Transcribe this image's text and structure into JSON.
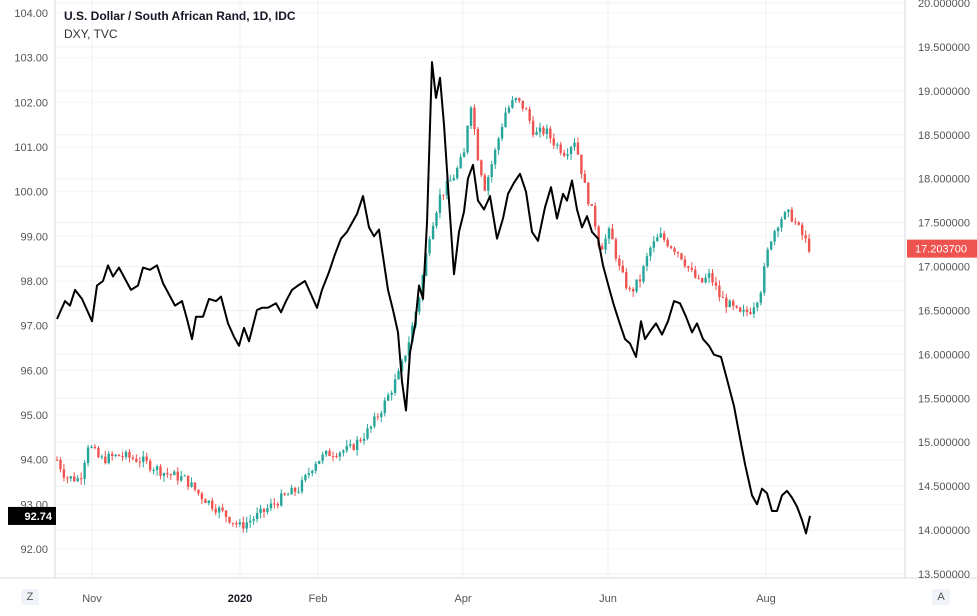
{
  "header": {
    "title": "U.S. Dollar / South African Rand, 1D, IDC",
    "subtitle": "DXY, TVC"
  },
  "corner_buttons": {
    "left": "Z",
    "right": "A"
  },
  "colors": {
    "up": "#26a69a",
    "down": "#ef5350",
    "line": "#000000",
    "grid": "#eef0f3",
    "axis_text": "#555555"
  },
  "chart_data": {
    "type": "candlestick-with-line",
    "title": "U.S. Dollar / South African Rand, 1D, IDC",
    "x_ticks": [
      "Nov",
      "2020",
      "Feb",
      "Apr",
      "Jun",
      "Aug"
    ],
    "left_axis": {
      "ticks": [
        "104.00",
        "103.00",
        "102.00",
        "101.00",
        "100.00",
        "99.00",
        "98.00",
        "97.00",
        "96.00",
        "95.00",
        "94.00",
        "93.00",
        "92.00"
      ],
      "range": [
        91.4,
        104.2
      ],
      "current_label": "92.74"
    },
    "right_axis": {
      "ticks": [
        "20.000000",
        "19.500000",
        "19.000000",
        "18.500000",
        "18.000000",
        "17.500000",
        "17.000000",
        "16.500000",
        "16.000000",
        "15.500000",
        "15.000000",
        "14.500000",
        "14.000000",
        "13.500000"
      ],
      "range": [
        13.4,
        20.05
      ],
      "current_label": "17.203700"
    },
    "series": [
      {
        "name": "DXY, TVC",
        "type": "line",
        "axis": "left",
        "values": [
          [
            57,
            97.15
          ],
          [
            65,
            97.55
          ],
          [
            70,
            97.45
          ],
          [
            75,
            97.8
          ],
          [
            82,
            97.6
          ],
          [
            87,
            97.35
          ],
          [
            92,
            97.1
          ],
          [
            97,
            97.9
          ],
          [
            103,
            98.0
          ],
          [
            108,
            98.35
          ],
          [
            113,
            98.1
          ],
          [
            119,
            98.3
          ],
          [
            125,
            98.05
          ],
          [
            131,
            97.8
          ],
          [
            138,
            97.9
          ],
          [
            143,
            98.3
          ],
          [
            150,
            98.25
          ],
          [
            157,
            98.35
          ],
          [
            163,
            97.95
          ],
          [
            169,
            97.7
          ],
          [
            175,
            97.45
          ],
          [
            182,
            97.55
          ],
          [
            187,
            97.15
          ],
          [
            192,
            96.7
          ],
          [
            196,
            97.2
          ],
          [
            203,
            97.2
          ],
          [
            209,
            97.6
          ],
          [
            216,
            97.55
          ],
          [
            221,
            97.65
          ],
          [
            228,
            97.05
          ],
          [
            234,
            96.75
          ],
          [
            239,
            96.55
          ],
          [
            244,
            96.95
          ],
          [
            249,
            96.65
          ],
          [
            257,
            97.35
          ],
          [
            262,
            97.4
          ],
          [
            268,
            97.4
          ],
          [
            276,
            97.5
          ],
          [
            281,
            97.3
          ],
          [
            286,
            97.55
          ],
          [
            292,
            97.8
          ],
          [
            298,
            97.9
          ],
          [
            305,
            98.0
          ],
          [
            311,
            97.7
          ],
          [
            317,
            97.4
          ],
          [
            322,
            97.8
          ],
          [
            329,
            98.2
          ],
          [
            335,
            98.6
          ],
          [
            341,
            98.95
          ],
          [
            347,
            99.1
          ],
          [
            352,
            99.3
          ],
          [
            357,
            99.5
          ],
          [
            363,
            99.9
          ],
          [
            369,
            99.2
          ],
          [
            374,
            99.0
          ],
          [
            379,
            99.15
          ],
          [
            384,
            98.4
          ],
          [
            388,
            97.8
          ],
          [
            393,
            97.35
          ],
          [
            398,
            96.85
          ],
          [
            402,
            95.75
          ],
          [
            406,
            95.1
          ],
          [
            410,
            96.4
          ],
          [
            415,
            97.0
          ],
          [
            419,
            97.9
          ],
          [
            423,
            97.6
          ],
          [
            427,
            99.3
          ],
          [
            432,
            102.9
          ],
          [
            436,
            102.1
          ],
          [
            440,
            102.55
          ],
          [
            444,
            101.5
          ],
          [
            449,
            99.8
          ],
          [
            454,
            98.15
          ],
          [
            459,
            99.1
          ],
          [
            464,
            99.55
          ],
          [
            468,
            100.3
          ],
          [
            473,
            100.6
          ],
          [
            478,
            99.8
          ],
          [
            484,
            99.6
          ],
          [
            490,
            99.9
          ],
          [
            497,
            98.95
          ],
          [
            503,
            99.4
          ],
          [
            508,
            99.95
          ],
          [
            514,
            100.2
          ],
          [
            520,
            100.4
          ],
          [
            526,
            100.0
          ],
          [
            532,
            99.1
          ],
          [
            538,
            98.9
          ],
          [
            545,
            99.65
          ],
          [
            551,
            100.1
          ],
          [
            557,
            99.4
          ],
          [
            563,
            99.95
          ],
          [
            567,
            99.8
          ],
          [
            572,
            100.25
          ],
          [
            577,
            99.6
          ],
          [
            582,
            99.2
          ],
          [
            587,
            99.45
          ],
          [
            592,
            99.1
          ],
          [
            598,
            98.95
          ],
          [
            603,
            98.35
          ],
          [
            609,
            97.85
          ],
          [
            614,
            97.45
          ],
          [
            619,
            97.1
          ],
          [
            625,
            96.7
          ],
          [
            630,
            96.6
          ],
          [
            636,
            96.3
          ],
          [
            641,
            97.1
          ],
          [
            645,
            96.7
          ],
          [
            651,
            96.9
          ],
          [
            656,
            97.05
          ],
          [
            662,
            96.8
          ],
          [
            668,
            97.1
          ],
          [
            674,
            97.55
          ],
          [
            680,
            97.5
          ],
          [
            686,
            97.2
          ],
          [
            692,
            96.85
          ],
          [
            697,
            97.05
          ],
          [
            703,
            96.7
          ],
          [
            709,
            96.55
          ],
          [
            714,
            96.35
          ],
          [
            721,
            96.3
          ],
          [
            727,
            95.8
          ],
          [
            734,
            95.2
          ],
          [
            739,
            94.6
          ],
          [
            745,
            93.9
          ],
          [
            752,
            93.2
          ],
          [
            757,
            93.0
          ],
          [
            762,
            93.35
          ],
          [
            767,
            93.25
          ],
          [
            772,
            92.85
          ],
          [
            777,
            92.85
          ],
          [
            782,
            93.2
          ],
          [
            787,
            93.3
          ],
          [
            792,
            93.15
          ],
          [
            797,
            92.95
          ],
          [
            802,
            92.65
          ],
          [
            806,
            92.35
          ],
          [
            810,
            92.74
          ]
        ]
      },
      {
        "name": "U.S. Dollar / South African Rand",
        "type": "candlestick",
        "axis": "right",
        "anchors": [
          [
            57,
            14.8
          ],
          [
            66,
            14.6
          ],
          [
            80,
            14.58
          ],
          [
            88,
            14.98
          ],
          [
            100,
            14.8
          ],
          [
            120,
            14.85
          ],
          [
            140,
            14.8
          ],
          [
            165,
            14.65
          ],
          [
            185,
            14.58
          ],
          [
            200,
            14.4
          ],
          [
            220,
            14.22
          ],
          [
            240,
            14.04
          ],
          [
            260,
            14.18
          ],
          [
            280,
            14.35
          ],
          [
            300,
            14.48
          ],
          [
            315,
            14.78
          ],
          [
            330,
            14.88
          ],
          [
            350,
            14.92
          ],
          [
            370,
            15.15
          ],
          [
            385,
            15.45
          ],
          [
            400,
            15.8
          ],
          [
            410,
            16.2
          ],
          [
            420,
            16.7
          ],
          [
            430,
            17.4
          ],
          [
            440,
            17.8
          ],
          [
            455,
            18.05
          ],
          [
            465,
            18.3
          ],
          [
            470,
            18.95
          ],
          [
            478,
            18.25
          ],
          [
            485,
            17.9
          ],
          [
            495,
            18.3
          ],
          [
            505,
            18.75
          ],
          [
            515,
            18.9
          ],
          [
            525,
            18.8
          ],
          [
            535,
            18.5
          ],
          [
            545,
            18.55
          ],
          [
            555,
            18.4
          ],
          [
            565,
            18.3
          ],
          [
            575,
            18.45
          ],
          [
            585,
            17.9
          ],
          [
            595,
            17.5
          ],
          [
            600,
            17.2
          ],
          [
            610,
            17.4
          ],
          [
            620,
            16.95
          ],
          [
            630,
            16.7
          ],
          [
            640,
            16.85
          ],
          [
            650,
            17.2
          ],
          [
            660,
            17.35
          ],
          [
            670,
            17.25
          ],
          [
            680,
            17.15
          ],
          [
            690,
            16.95
          ],
          [
            700,
            16.8
          ],
          [
            710,
            16.9
          ],
          [
            720,
            16.65
          ],
          [
            730,
            16.55
          ],
          [
            740,
            16.45
          ],
          [
            750,
            16.5
          ],
          [
            760,
            16.7
          ],
          [
            770,
            17.3
          ],
          [
            780,
            17.55
          ],
          [
            790,
            17.6
          ],
          [
            800,
            17.4
          ],
          [
            810,
            17.2
          ]
        ]
      }
    ],
    "grid": true,
    "legend": "top-left"
  }
}
